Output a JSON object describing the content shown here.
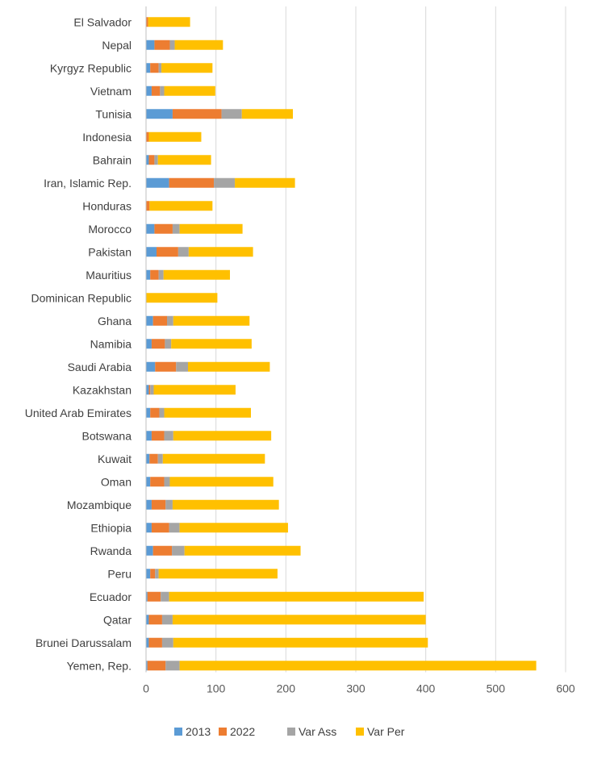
{
  "chart_data": {
    "type": "bar",
    "orientation": "horizontal",
    "stacked": true,
    "title": "",
    "xlabel": "",
    "ylabel": "",
    "xlim": [
      0,
      600
    ],
    "x_ticks": [
      "0",
      "100",
      "200",
      "300",
      "400",
      "500",
      "600"
    ],
    "grid": "vertical",
    "legend_position": "bottom",
    "categories": [
      "El Salvador",
      "Nepal",
      "Kyrgyz Republic",
      "Vietnam",
      "Tunisia",
      "Indonesia",
      "Bahrain",
      "Iran, Islamic Rep.",
      "Honduras",
      "Morocco",
      "Pakistan",
      "Mauritius",
      "Dominican Republic",
      "Ghana",
      "Namibia",
      "Saudi Arabia",
      "Kazakhstan",
      "United Arab Emirates",
      "Botswana",
      "Kuwait",
      "Oman",
      "Mozambique",
      "Ethiopia",
      "Rwanda",
      "Peru",
      "Ecuador",
      "Qatar",
      "Brunei Darussalam",
      "Yemen, Rep."
    ],
    "series": [
      {
        "name": "2013",
        "color": "#5B9BD5",
        "values": [
          0,
          12,
          6,
          8,
          38,
          0,
          4,
          33,
          0,
          12,
          15,
          6,
          0,
          10,
          8,
          13,
          4,
          6,
          8,
          5,
          6,
          8,
          8,
          10,
          6,
          2,
          4,
          4,
          2
        ]
      },
      {
        "name": "2022",
        "color": "#ED7D31",
        "values": [
          3,
          22,
          12,
          12,
          70,
          4,
          8,
          64,
          5,
          26,
          31,
          12,
          0,
          20,
          19,
          30,
          2,
          13,
          18,
          12,
          20,
          20,
          25,
          27,
          7,
          19,
          19,
          19,
          26
        ]
      },
      {
        "name": "Var Ass",
        "color": "#A5A5A5",
        "values": [
          0,
          7,
          4,
          6,
          29,
          0,
          5,
          30,
          0,
          10,
          15,
          7,
          0,
          9,
          9,
          17,
          5,
          7,
          13,
          7,
          8,
          10,
          15,
          18,
          5,
          12,
          15,
          16,
          20
        ]
      },
      {
        "name": "Var Per",
        "color": "#FFC000",
        "values": [
          60,
          69,
          73,
          73,
          73,
          75,
          76,
          86,
          90,
          90,
          92,
          95,
          102,
          109,
          115,
          117,
          117,
          124,
          140,
          146,
          148,
          152,
          155,
          166,
          170,
          364,
          362,
          364,
          510
        ]
      }
    ]
  }
}
